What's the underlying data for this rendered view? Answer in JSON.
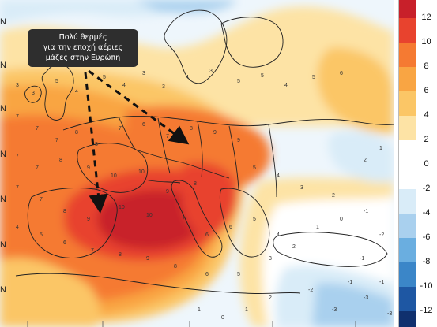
{
  "map": {
    "latitude_labels": [
      "N",
      "N",
      "N",
      "N",
      "N",
      "N",
      "N"
    ],
    "contour_values": [
      "3",
      "3",
      "5",
      "4",
      "5",
      "4",
      "3",
      "3",
      "4",
      "3",
      "5",
      "5",
      "4",
      "5",
      "6",
      "7",
      "7",
      "7",
      "8",
      "8",
      "7",
      "6",
      "7",
      "8",
      "9",
      "9",
      "7",
      "7",
      "8",
      "9",
      "10",
      "10",
      "9",
      "8",
      "7",
      "7",
      "8",
      "9",
      "10",
      "10",
      "7",
      "6",
      "6",
      "5",
      "4",
      "4",
      "5",
      "6",
      "7",
      "8",
      "9",
      "8",
      "6",
      "5",
      "3",
      "2",
      "1",
      "0",
      "-1",
      "-2",
      "-1",
      "2",
      "3",
      "4",
      "5",
      "2",
      "1",
      "-1",
      "-3",
      "-3",
      "-2",
      "2",
      "1",
      "0",
      "1",
      "-1",
      "-3"
    ]
  },
  "callout": {
    "line1": "Πολύ θερμές",
    "line2": "για την εποχή αέριες",
    "line3": "μάζες στην Ευρώπη"
  },
  "legend": {
    "ticks": [
      "12",
      "10",
      "8",
      "6",
      "4",
      "2",
      "0",
      "-2",
      "-4",
      "-6",
      "-8",
      "-10",
      "-12"
    ],
    "colors": [
      "#c8202a",
      "#e8432e",
      "#f57a32",
      "#f9a543",
      "#fbc666",
      "#fde3a5",
      "#ffffff",
      "#ffffff",
      "#d9ecf8",
      "#a9d0ee",
      "#6aaee0",
      "#3b86c8",
      "#1e57a3",
      "#10306e"
    ]
  }
}
